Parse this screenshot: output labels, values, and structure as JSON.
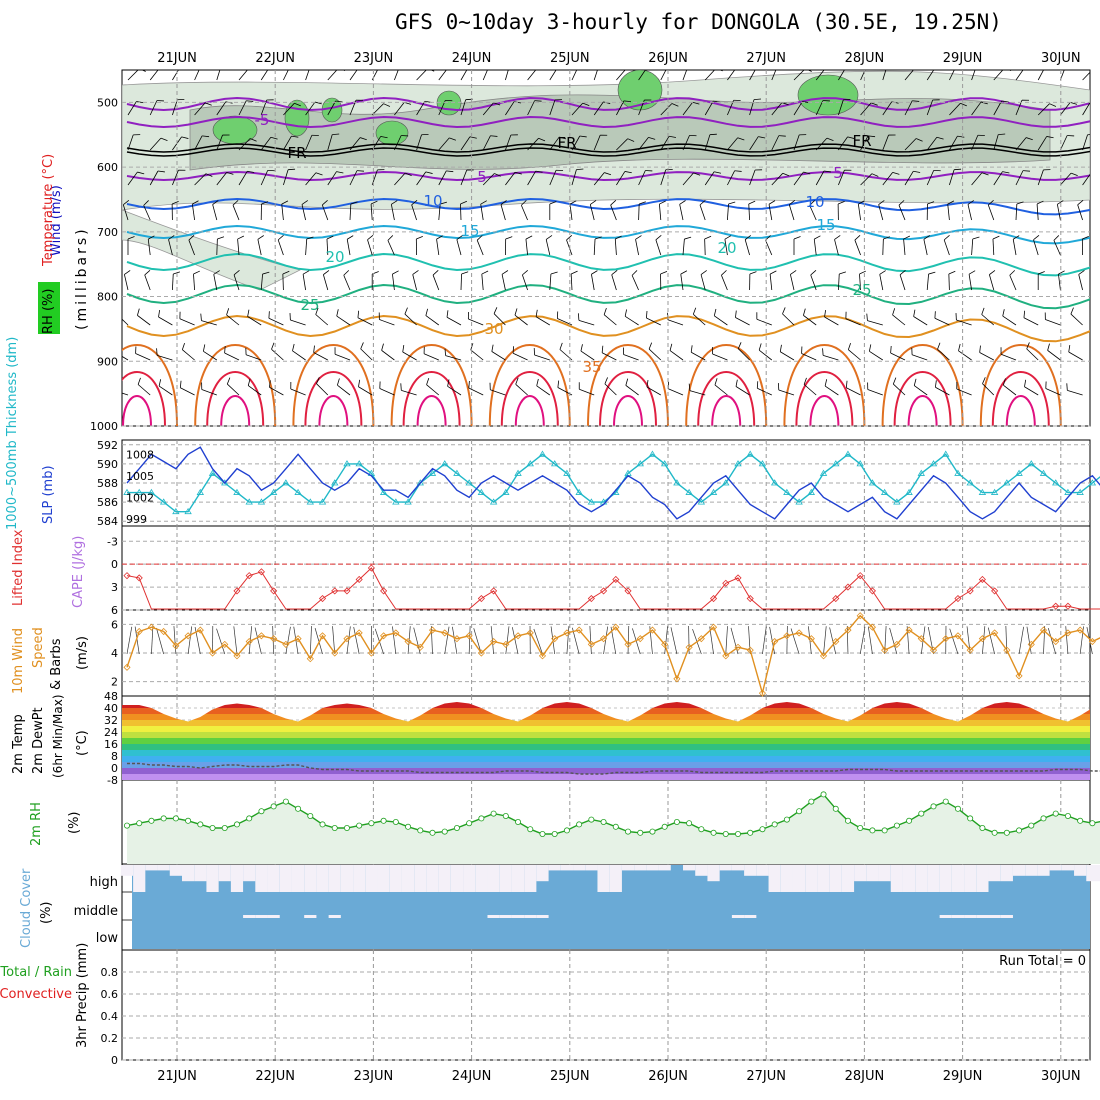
{
  "title": "GFS 0~10day 3-hourly for DONGOLA (30.5E, 19.25N)",
  "dates": [
    "21JUN",
    "22JUN",
    "23JUN",
    "24JUN",
    "25JUN",
    "26JUN",
    "27JUN",
    "28JUN",
    "29JUN",
    "30JUN"
  ],
  "colors": {
    "wind": "#1010c0",
    "temperature": "#e02020",
    "rh": "#20c020",
    "thickness": "#20b8c8",
    "slp": "#2040d0",
    "lifted_index": "#e03030",
    "cape": "#b070e0",
    "wind10m": "#e09020",
    "rh2m": "#20a020",
    "cloud": "#6aaad6",
    "precip_total": "#20a020",
    "precip_conv": "#e02020"
  },
  "panels": {
    "upper": {
      "label_wind": "Wind (m/s)",
      "label_temp": "Temperature (°C)",
      "label_rh": "RH (%)",
      "label_p": "(millibars)",
      "yticks": [
        "500",
        "600",
        "700",
        "800",
        "900",
        "1000"
      ],
      "contour_labels": [
        "-5",
        "FR",
        "FR",
        "FR",
        "5",
        "5",
        "10",
        "10",
        "15",
        "15",
        "20",
        "20",
        "25",
        "25",
        "30",
        "35"
      ]
    },
    "slp": {
      "label_thk": "1000~500mb Thickness (dm)",
      "label_slp": "SLP (mb)",
      "yticks_left": [
        "592",
        "590",
        "588",
        "586",
        "584"
      ],
      "yticks_right": [
        "1008",
        "1005",
        "1002",
        "999"
      ]
    },
    "cape": {
      "label_li": "Lifted Index",
      "label_cape": "CAPE (J/kg)",
      "yticks": [
        "-3",
        "0",
        "3",
        "6"
      ]
    },
    "wind10": {
      "label1": "10m Wind",
      "label2": "Speed",
      "label3": "& Barbs",
      "unit": "(m/s)",
      "yticks": [
        "6",
        "4",
        "2"
      ]
    },
    "temp2m": {
      "label1": "2m Temp",
      "label2": "2m DewPt",
      "label3": "(6hr Min/Max)",
      "unit": "(°C)",
      "yticks": [
        "48",
        "40",
        "32",
        "24",
        "16",
        "8",
        "0",
        "-8"
      ]
    },
    "rh2m": {
      "label": "2m RH",
      "unit": "(%)"
    },
    "cloud": {
      "label": "Cloud Cover",
      "unit": "(%)",
      "levels": [
        "high",
        "middle",
        "low"
      ]
    },
    "precip": {
      "label": "3hr Precip (mm)",
      "label_total": "Total / Rain",
      "label_conv": "Convective",
      "run_total": "Run Total = 0",
      "yticks": [
        "0.8",
        "0.6",
        "0.4",
        "0.2",
        "0"
      ]
    }
  },
  "chart_data": [
    {
      "type": "line",
      "name": "SLP",
      "x_unit": "3-hourly steps from 20 JUN 12Z",
      "ylim": [
        998,
        1010
      ],
      "values": [
        1004,
        1006,
        1008,
        1007,
        1006,
        1008,
        1009,
        1006,
        1004,
        1006,
        1005,
        1003,
        1004,
        1006,
        1008,
        1006,
        1004,
        1003,
        1004,
        1006,
        1005,
        1003,
        1003,
        1002,
        1004,
        1006,
        1005,
        1003,
        1002,
        1004,
        1005,
        1004,
        1003,
        1004,
        1005,
        1004,
        1003,
        1001,
        1000,
        1001,
        1003,
        1005,
        1004,
        1002,
        1001,
        999,
        1000,
        1002,
        1004,
        1005,
        1003,
        1001,
        1000,
        999,
        1001,
        1003,
        1004,
        1002,
        1001,
        1000,
        1001,
        1002,
        1000,
        999,
        1001,
        1003,
        1005,
        1004,
        1002,
        1000,
        999,
        1000,
        1002,
        1004,
        1002,
        1001,
        1000,
        1002,
        1004,
        1005,
        1003,
        1001,
        1000,
        1002,
        1004,
        1006
      ]
    },
    {
      "type": "line",
      "name": "1000~500mb Thickness",
      "ylim": [
        583.5,
        592.5
      ],
      "values": [
        587,
        587,
        587,
        586,
        585,
        585,
        587,
        589,
        588,
        587,
        586,
        586,
        587,
        588,
        587,
        586,
        586,
        588,
        590,
        590,
        589,
        587,
        586,
        586,
        588,
        589,
        590,
        589,
        588,
        587,
        586,
        587,
        589,
        590,
        591,
        590,
        589,
        587,
        586,
        586,
        587,
        589,
        590,
        591,
        590,
        588,
        587,
        586,
        587,
        588,
        590,
        591,
        590,
        588,
        587,
        586,
        587,
        589,
        590,
        591,
        590,
        588,
        587,
        586,
        587,
        589,
        590,
        591,
        589,
        588,
        587,
        587,
        588,
        589,
        590,
        589,
        588,
        587,
        587,
        588,
        589,
        590,
        589,
        587,
        586,
        585
      ]
    },
    {
      "type": "line",
      "name": "Lifted Index",
      "ylim": [
        -5,
        6
      ],
      "values": [
        1.5,
        1.8,
        6,
        6,
        6,
        6,
        6,
        6,
        6,
        3.5,
        1.5,
        1.0,
        3.5,
        6,
        6,
        6,
        4.5,
        3.5,
        3.5,
        2.0,
        0.5,
        3.5,
        6,
        6,
        6,
        6,
        6,
        6,
        6,
        4.5,
        3.5,
        6,
        6,
        6,
        6,
        6,
        6,
        6,
        4.5,
        3.5,
        2.0,
        3.5,
        6,
        6,
        6,
        6,
        6,
        6,
        4.5,
        2.5,
        1.8,
        4.5,
        6,
        6,
        6,
        6,
        6,
        6,
        4.5,
        3.0,
        1.5,
        3.5,
        6,
        6,
        6,
        6,
        6,
        6,
        4.5,
        3.5,
        2.0,
        3.5,
        6,
        6,
        6,
        6,
        5.5,
        5.5,
        6,
        6,
        6,
        4.5,
        4.0,
        6,
        6,
        6
      ]
    },
    {
      "type": "line",
      "name": "10m Wind Speed",
      "ylim": [
        1,
        7
      ],
      "values": [
        3,
        5.5,
        5.8,
        5.5,
        4.5,
        5.2,
        5.6,
        4,
        4.6,
        3.8,
        4.8,
        5.2,
        5.0,
        4.6,
        5.0,
        3.6,
        5.2,
        4.0,
        5.0,
        5.4,
        4.0,
        5.2,
        5.4,
        4.8,
        4.4,
        5.6,
        5.4,
        5.0,
        5.2,
        4.0,
        4.8,
        4.6,
        5.2,
        5.4,
        3.8,
        5.0,
        5.4,
        5.6,
        4.6,
        5.0,
        5.8,
        4.6,
        5.0,
        5.6,
        4.6,
        2.2,
        4.4,
        5.0,
        5.8,
        3.8,
        4.4,
        4.2,
        1.2,
        4.8,
        5.2,
        5.4,
        5.0,
        3.8,
        4.8,
        5.6,
        6.6,
        5.8,
        4.2,
        4.6,
        5.6,
        5.0,
        4.2,
        5.0,
        5.2,
        4.2,
        5.0,
        5.4,
        4.2,
        2.4,
        4.6,
        5.6,
        4.8,
        5.4,
        5.6,
        4.8,
        5.2,
        6.0,
        5.4,
        5.0,
        4.6,
        4.2
      ]
    },
    {
      "type": "line",
      "name": "2m RH",
      "ylim": [
        0,
        70
      ],
      "values": [
        32,
        34,
        36,
        38,
        38,
        36,
        33,
        30,
        30,
        33,
        38,
        44,
        48,
        52,
        46,
        40,
        33,
        30,
        30,
        32,
        34,
        36,
        35,
        31,
        28,
        26,
        27,
        30,
        34,
        38,
        42,
        40,
        35,
        29,
        25,
        25,
        28,
        33,
        37,
        35,
        31,
        27,
        26,
        27,
        31,
        35,
        34,
        29,
        26,
        25,
        25,
        26,
        29,
        33,
        37,
        44,
        52,
        58,
        46,
        36,
        30,
        28,
        28,
        32,
        36,
        42,
        48,
        52,
        46,
        38,
        30,
        26,
        26,
        28,
        32,
        38,
        42,
        40,
        36,
        34,
        36,
        40,
        44,
        46,
        40,
        32
      ]
    },
    {
      "type": "area",
      "name": "2m Temp",
      "ylim": [
        -8,
        48
      ],
      "values": [
        42,
        42,
        40,
        36,
        33,
        31,
        34,
        39,
        42,
        43,
        42,
        40,
        36,
        33,
        31,
        35,
        40,
        42,
        43,
        42,
        40,
        36,
        33,
        31,
        35,
        40,
        43,
        44,
        43,
        40,
        36,
        33,
        31,
        35,
        40,
        43,
        44,
        43,
        40,
        36,
        33,
        31,
        35,
        40,
        43,
        44,
        43,
        40,
        36,
        33,
        31,
        35,
        40,
        43,
        44,
        43,
        40,
        36,
        33,
        31,
        35,
        40,
        43,
        44,
        43,
        40,
        36,
        33,
        31,
        35,
        40,
        43,
        44,
        43,
        40,
        36,
        33,
        31,
        35,
        40,
        43,
        44,
        43,
        40,
        36,
        34
      ]
    },
    {
      "type": "line",
      "name": "2m DewPt",
      "ylim": [
        -8,
        48
      ],
      "values": [
        3,
        3,
        2,
        2,
        1,
        1,
        0,
        1,
        2,
        2,
        1,
        1,
        1,
        2,
        2,
        0,
        -1,
        -1,
        -1,
        -2,
        -2,
        -2,
        -2,
        -2,
        -3,
        -3,
        -3,
        -3,
        -3,
        -3,
        -3,
        -2,
        -2,
        -2,
        -3,
        -3,
        -3,
        -4,
        -4,
        -4,
        -3,
        -3,
        -3,
        -2,
        -2,
        -2,
        -2,
        -3,
        -3,
        -3,
        -3,
        -3,
        -3,
        -2,
        -2,
        -2,
        -2,
        -2,
        -2,
        -1,
        -1,
        -1,
        -1,
        -2,
        -2,
        -2,
        -2,
        -2,
        -2,
        -2,
        -2,
        -2,
        -2,
        -2,
        -2,
        -2,
        -1,
        -1,
        -1,
        -2,
        -2,
        -2,
        -2,
        -2,
        -2,
        -2
      ]
    },
    {
      "type": "bar",
      "name": "High Cloud",
      "ylim": [
        0,
        100
      ],
      "values": [
        60,
        0,
        80,
        80,
        60,
        40,
        40,
        0,
        40,
        0,
        40,
        0,
        0,
        0,
        0,
        0,
        0,
        0,
        0,
        0,
        0,
        0,
        0,
        0,
        0,
        0,
        0,
        0,
        0,
        0,
        0,
        0,
        0,
        0,
        40,
        80,
        80,
        80,
        80,
        0,
        0,
        80,
        80,
        80,
        80,
        100,
        80,
        60,
        40,
        80,
        80,
        60,
        60,
        0,
        0,
        0,
        0,
        0,
        0,
        0,
        40,
        40,
        40,
        0,
        0,
        0,
        0,
        0,
        0,
        0,
        0,
        40,
        40,
        60,
        60,
        60,
        80,
        80,
        60,
        40,
        40,
        80,
        100,
        80,
        60,
        40
      ]
    },
    {
      "type": "bar",
      "name": "Mid Cloud",
      "ylim": [
        0,
        100
      ],
      "values": [
        0,
        0,
        0,
        0,
        0,
        0,
        0,
        0,
        0,
        0,
        40,
        40,
        40,
        0,
        0,
        40,
        0,
        40,
        0,
        0,
        0,
        0,
        0,
        0,
        0,
        0,
        0,
        0,
        0,
        0,
        40,
        40,
        40,
        40,
        40,
        0,
        0,
        0,
        0,
        0,
        0,
        0,
        0,
        0,
        0,
        0,
        0,
        0,
        0,
        0,
        40,
        40,
        0,
        0,
        0,
        0,
        0,
        0,
        0,
        0,
        0,
        0,
        0,
        0,
        0,
        0,
        0,
        40,
        40,
        40,
        40,
        40,
        40,
        0,
        0,
        0,
        0,
        0,
        0,
        0,
        0,
        0,
        0,
        0,
        0,
        0
      ]
    },
    {
      "type": "bar",
      "name": "3hr Precip",
      "ylim": [
        0,
        1
      ],
      "values": []
    }
  ]
}
